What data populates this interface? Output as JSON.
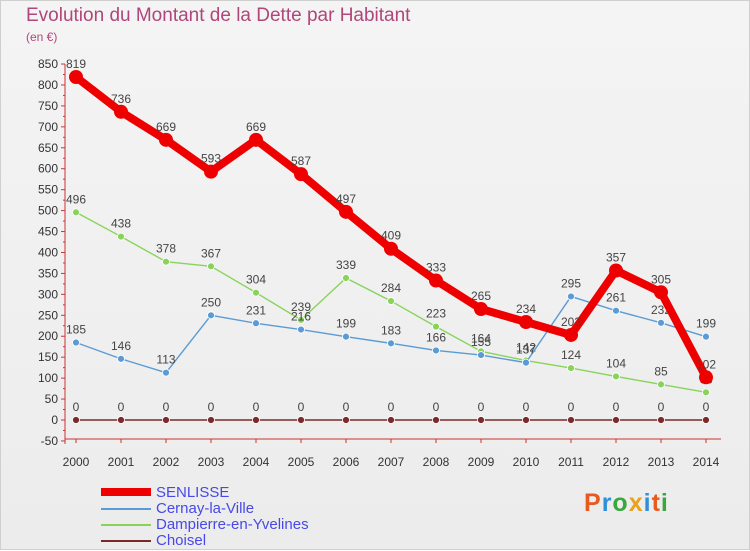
{
  "title": "Evolution du Montant de la Dette par Habitant",
  "unit": "(en €)",
  "logo": {
    "text": "Proxiti",
    "colors": [
      "#e85a1e",
      "#2f8fd8",
      "#38a83a",
      "#e8a21e",
      "#2f8fd8",
      "#e85a1e",
      "#38a83a"
    ]
  },
  "chart_data": {
    "type": "line",
    "title": "Evolution du Montant de la Dette par Habitant",
    "ylabel": "(en €)",
    "xlabel": "",
    "x": [
      "2000",
      "2001",
      "2002",
      "2003",
      "2004",
      "2005",
      "2006",
      "2007",
      "2008",
      "2009",
      "2010",
      "2011",
      "2012",
      "2013",
      "2014"
    ],
    "ylim": [
      -50,
      850
    ],
    "yticks": [
      "-50",
      "0",
      "50",
      "100",
      "150",
      "200",
      "250",
      "300",
      "350",
      "400",
      "450",
      "500",
      "550",
      "600",
      "650",
      "700",
      "750",
      "800",
      "850"
    ],
    "grid": false,
    "legend": "bottom-left",
    "series": [
      {
        "name": "Choisel",
        "color": "#7a2a2a",
        "values": [
          0,
          0,
          0,
          0,
          0,
          0,
          0,
          0,
          0,
          0,
          0,
          0,
          0,
          0,
          0
        ],
        "labels": [
          "0",
          "0",
          "0",
          "0",
          "0",
          "0",
          "0",
          "0",
          "0",
          "0",
          "0",
          "0",
          "0",
          "0",
          "0"
        ]
      },
      {
        "name": "Dampierre-en-Yvelines",
        "color": "#88d45a",
        "values": [
          496,
          438,
          378,
          367,
          304,
          239,
          339,
          284,
          223,
          164,
          142,
          124,
          104,
          85,
          66
        ],
        "labels": [
          "496",
          "438",
          "378",
          "367",
          "304",
          "239",
          "339",
          "284",
          "223",
          "164",
          "142",
          "124",
          "104",
          "85",
          "66"
        ]
      },
      {
        "name": "Cernay-la-Ville",
        "color": "#5b9bd5",
        "values": [
          185,
          146,
          113,
          250,
          231,
          216,
          199,
          183,
          166,
          155,
          137,
          295,
          261,
          232,
          199
        ],
        "labels": [
          "185",
          "146",
          "113",
          "250",
          "231",
          "216",
          "199",
          "183",
          "166",
          "155",
          "137",
          "295",
          "261",
          "232",
          "199"
        ]
      },
      {
        "name": "SENLISSE",
        "color": "#ee0000",
        "values": [
          819,
          736,
          669,
          593,
          669,
          587,
          497,
          409,
          333,
          265,
          234,
          203,
          357,
          305,
          102
        ],
        "labels": [
          "819",
          "736",
          "669",
          "593",
          "669",
          "587",
          "497",
          "409",
          "333",
          "265",
          "234",
          "203",
          "357",
          "305",
          "102"
        ]
      }
    ],
    "legend_order": [
      "SENLISSE",
      "Cernay-la-Ville",
      "Dampierre-en-Yvelines",
      "Choisel"
    ]
  }
}
